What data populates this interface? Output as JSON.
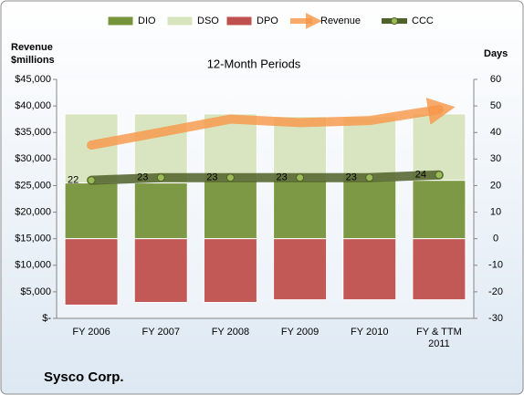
{
  "chart_data": {
    "type": "combo",
    "title": "12-Month Periods",
    "y_label_lines": [
      "Revenue",
      "$millions"
    ],
    "y2_label": "Days",
    "footer": "Sysco Corp.",
    "categories": [
      "FY 2006",
      "FY 2007",
      "FY 2008",
      "FY 2009",
      "FY 2010",
      "FY & TTM 2011"
    ],
    "ylim": [
      0,
      45000
    ],
    "yticks": [
      {
        "value": 0,
        "label": "$-"
      },
      {
        "value": 5000,
        "label": "$5,000"
      },
      {
        "value": 10000,
        "label": "$10,000"
      },
      {
        "value": 15000,
        "label": "$15,000"
      },
      {
        "value": 20000,
        "label": "$20,000"
      },
      {
        "value": 25000,
        "label": "$25,000"
      },
      {
        "value": 30000,
        "label": "$30,000"
      },
      {
        "value": 35000,
        "label": "$35,000"
      },
      {
        "value": 40000,
        "label": "$40,000"
      },
      {
        "value": 45000,
        "label": "$45,000"
      }
    ],
    "y2lim": [
      -30,
      60
    ],
    "y2ticks": [
      -30,
      -20,
      -10,
      0,
      10,
      20,
      30,
      40,
      50,
      60
    ],
    "grid": false,
    "legend": "top",
    "series": [
      {
        "name": "DIO",
        "type": "bar",
        "axis": "y2",
        "color": "#77933c",
        "values": [
          21,
          21,
          22,
          22,
          22,
          22
        ]
      },
      {
        "name": "DSO",
        "type": "bar",
        "axis": "y2",
        "color": "#d7e4bd",
        "values": [
          26,
          26,
          25,
          24,
          24,
          25
        ]
      },
      {
        "name": "DPO",
        "type": "bar",
        "axis": "y2",
        "color": "#c0504d",
        "negative": true,
        "values": [
          25,
          24,
          24,
          23,
          23,
          23
        ]
      },
      {
        "name": "Revenue",
        "type": "arrow",
        "axis": "y",
        "color": "#f79646",
        "values": [
          32628,
          35042,
          37522,
          36853,
          37244,
          39324
        ]
      },
      {
        "name": "CCC",
        "type": "line",
        "axis": "y2",
        "color": "#4f6228",
        "values": [
          22,
          23,
          23,
          23,
          23,
          24
        ]
      }
    ]
  }
}
